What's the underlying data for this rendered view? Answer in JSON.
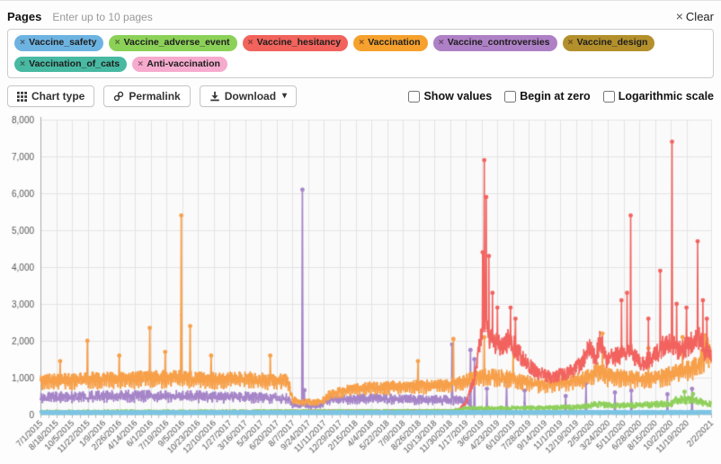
{
  "header": {
    "pages_label": "Pages",
    "pages_placeholder": "Enter up to 10 pages",
    "clear_icon": "×",
    "clear_label": "Clear",
    "tags": [
      {
        "label": "Vaccine_safety",
        "color": "#6db3e2",
        "remove_icon": "×"
      },
      {
        "label": "Vaccine_adverse_event",
        "color": "#8bd158",
        "remove_icon": "×"
      },
      {
        "label": "Vaccine_hesitancy",
        "color": "#f1635c",
        "remove_icon": "×"
      },
      {
        "label": "Vaccination",
        "color": "#f6a12d",
        "remove_icon": "×"
      },
      {
        "label": "Vaccine_controversies",
        "color": "#ae80c5",
        "remove_icon": "×"
      },
      {
        "label": "Vaccine_design",
        "color": "#b3902c",
        "remove_icon": "×"
      },
      {
        "label": "Vaccination_of_cats",
        "color": "#48b9a2",
        "remove_icon": "×"
      },
      {
        "label": "Anti-vaccination",
        "color": "#f6abce",
        "remove_icon": "×"
      }
    ]
  },
  "toolbar": {
    "buttons": [
      {
        "label": "Chart type"
      },
      {
        "label": "Permalink"
      },
      {
        "label": "Download"
      }
    ],
    "download_caret": "▾",
    "checkboxes": [
      {
        "label": "Show values",
        "checked": false
      },
      {
        "label": "Begin at zero",
        "checked": false
      },
      {
        "label": "Logarithmic scale",
        "checked": false
      }
    ]
  },
  "chart_data": {
    "type": "line",
    "title": "",
    "xlabel": "",
    "ylabel": "",
    "ylim": [
      0,
      8000
    ],
    "y_tick_step": 1000,
    "grid": true,
    "legend_position": "none",
    "x_start_date": "7/1/2015",
    "x_end_date": "2/2/2021",
    "x_total_days": 2043,
    "x_tick_interval_days": 48,
    "x_tick_labels": [
      "7/1/2015",
      "8/18/2015",
      "10/5/2015",
      "11/22/2015",
      "1/9/2016",
      "2/26/2016",
      "4/14/2016",
      "6/1/2016",
      "7/19/2016",
      "9/5/2016",
      "10/23/2016",
      "12/10/2016",
      "1/27/2017",
      "3/16/2017",
      "5/3/2017",
      "6/20/2017",
      "8/7/2017",
      "9/24/2017",
      "11/11/2017",
      "12/29/2017",
      "2/15/2018",
      "4/4/2018",
      "5/22/2018",
      "7/9/2018",
      "8/26/2018",
      "10/13/2018",
      "11/30/2018",
      "1/17/2019",
      "3/6/2019",
      "4/23/2019",
      "6/10/2019",
      "7/28/2019",
      "9/14/2019",
      "11/1/2019",
      "12/19/2019",
      "2/5/2020",
      "3/24/2020",
      "5/11/2020",
      "6/28/2020",
      "8/15/2020",
      "10/2/2020",
      "11/19/2020",
      "2/2/2021"
    ],
    "series": [
      {
        "name": "Vaccine_safety",
        "color": "#7cc4e4",
        "line_width": 4.5,
        "noise_rel": 0.22,
        "weekly_dip": false,
        "markers": false,
        "keyframes": [
          [
            0,
            55
          ],
          [
            2043,
            60
          ]
        ],
        "spikes": []
      },
      {
        "name": "Vaccine_adverse_event",
        "color": "#8fd05c",
        "line_width": 1.6,
        "noise_rel": 0.3,
        "weekly_dip": false,
        "markers": true,
        "keyframes": [
          [
            0,
            90
          ],
          [
            1250,
            105
          ],
          [
            1300,
            170
          ],
          [
            1500,
            180
          ],
          [
            1640,
            200
          ],
          [
            1700,
            280
          ],
          [
            1760,
            240
          ],
          [
            1850,
            260
          ],
          [
            1920,
            300
          ],
          [
            1945,
            420
          ],
          [
            1990,
            380
          ],
          [
            2020,
            320
          ],
          [
            2043,
            280
          ]
        ],
        "spikes": [
          [
            1962,
            620
          ],
          [
            1988,
            560
          ]
        ]
      },
      {
        "name": "Vaccine_hesitancy",
        "color": "#f2635f",
        "line_width": 1.6,
        "noise_rel": 0.16,
        "weekly_dip": false,
        "markers": true,
        "keyframes": [
          [
            0,
            80
          ],
          [
            1270,
            110
          ],
          [
            1295,
            300
          ],
          [
            1320,
            900
          ],
          [
            1340,
            2000
          ],
          [
            1352,
            2500
          ],
          [
            1365,
            2100
          ],
          [
            1395,
            1900
          ],
          [
            1430,
            2000
          ],
          [
            1470,
            1500
          ],
          [
            1510,
            1150
          ],
          [
            1560,
            1000
          ],
          [
            1610,
            1150
          ],
          [
            1645,
            1350
          ],
          [
            1672,
            1800
          ],
          [
            1690,
            1500
          ],
          [
            1705,
            2000
          ],
          [
            1725,
            1500
          ],
          [
            1765,
            1600
          ],
          [
            1800,
            1700
          ],
          [
            1830,
            1400
          ],
          [
            1860,
            1500
          ],
          [
            1890,
            1800
          ],
          [
            1920,
            2000
          ],
          [
            1945,
            1700
          ],
          [
            1975,
            1900
          ],
          [
            2005,
            2100
          ],
          [
            2025,
            1700
          ],
          [
            2043,
            1600
          ]
        ],
        "spikes": [
          [
            1347,
            4400
          ],
          [
            1352,
            6900
          ],
          [
            1358,
            5900
          ],
          [
            1366,
            4300
          ],
          [
            1377,
            3300
          ],
          [
            1392,
            2900
          ],
          [
            1432,
            2900
          ],
          [
            1447,
            2600
          ],
          [
            1770,
            3100
          ],
          [
            1787,
            3300
          ],
          [
            1798,
            5400
          ],
          [
            1852,
            2600
          ],
          [
            1888,
            3900
          ],
          [
            1924,
            7400
          ],
          [
            1938,
            3000
          ],
          [
            1968,
            2900
          ],
          [
            2002,
            4700
          ],
          [
            2018,
            3100
          ],
          [
            2030,
            2600
          ]
        ]
      },
      {
        "name": "Vaccination",
        "color": "#f7a04a",
        "line_width": 1.8,
        "noise_rel": 0.14,
        "weekly_dip": true,
        "markers": true,
        "keyframes": [
          [
            0,
            950
          ],
          [
            150,
            1000
          ],
          [
            300,
            1030
          ],
          [
            420,
            1050
          ],
          [
            520,
            1000
          ],
          [
            640,
            1020
          ],
          [
            755,
            950
          ],
          [
            768,
            420
          ],
          [
            800,
            360
          ],
          [
            855,
            360
          ],
          [
            875,
            560
          ],
          [
            930,
            700
          ],
          [
            1000,
            780
          ],
          [
            1100,
            800
          ],
          [
            1200,
            820
          ],
          [
            1270,
            880
          ],
          [
            1340,
            1100
          ],
          [
            1420,
            1050
          ],
          [
            1470,
            950
          ],
          [
            1530,
            850
          ],
          [
            1590,
            900
          ],
          [
            1650,
            1000
          ],
          [
            1700,
            1250
          ],
          [
            1730,
            1100
          ],
          [
            1790,
            1050
          ],
          [
            1850,
            1000
          ],
          [
            1900,
            1100
          ],
          [
            1950,
            1250
          ],
          [
            2000,
            1400
          ],
          [
            2030,
            1800
          ],
          [
            2043,
            1900
          ]
        ],
        "spikes": [
          [
            60,
            1450
          ],
          [
            143,
            2000
          ],
          [
            240,
            1600
          ],
          [
            333,
            2350
          ],
          [
            380,
            1700
          ],
          [
            429,
            5400
          ],
          [
            456,
            2400
          ],
          [
            520,
            1600
          ],
          [
            700,
            1600
          ],
          [
            1150,
            1450
          ],
          [
            1258,
            2050
          ],
          [
            1352,
            2100
          ],
          [
            1440,
            1800
          ],
          [
            1712,
            2200
          ],
          [
            1852,
            1800
          ],
          [
            1956,
            2100
          ],
          [
            2024,
            2150
          ]
        ]
      },
      {
        "name": "Vaccine_controversies",
        "color": "#a685c8",
        "line_width": 1.7,
        "noise_rel": 0.22,
        "weekly_dip": true,
        "markers": true,
        "keyframes": [
          [
            0,
            500
          ],
          [
            200,
            530
          ],
          [
            400,
            540
          ],
          [
            600,
            500
          ],
          [
            755,
            470
          ],
          [
            770,
            260
          ],
          [
            855,
            250
          ],
          [
            880,
            420
          ],
          [
            1000,
            460
          ],
          [
            1150,
            430
          ],
          [
            1270,
            420
          ],
          [
            1300,
            380
          ],
          [
            1314,
            200
          ],
          [
            1318,
            40
          ],
          [
            1400,
            35
          ],
          [
            1600,
            30
          ],
          [
            1800,
            35
          ],
          [
            2043,
            30
          ]
        ],
        "spikes": [
          [
            798,
            6100
          ],
          [
            804,
            660
          ],
          [
            1254,
            1900
          ],
          [
            1310,
            1750
          ],
          [
            1322,
            1500
          ],
          [
            1360,
            700
          ],
          [
            1420,
            900
          ],
          [
            1475,
            650
          ],
          [
            1600,
            500
          ],
          [
            1662,
            850
          ],
          [
            1750,
            600
          ],
          [
            1800,
            650
          ],
          [
            1910,
            550
          ],
          [
            1985,
            700
          ]
        ]
      },
      {
        "name": "Vaccine_design",
        "color": "#b3902c",
        "line_width": 1.3,
        "noise_rel": 0.35,
        "weekly_dip": false,
        "markers": false,
        "keyframes": [
          [
            0,
            28
          ],
          [
            2043,
            35
          ]
        ],
        "spikes": []
      },
      {
        "name": "Vaccination_of_cats",
        "color": "#48b9a2",
        "line_width": 1.3,
        "noise_rel": 0.4,
        "weekly_dip": false,
        "markers": false,
        "keyframes": [
          [
            0,
            10
          ],
          [
            2043,
            14
          ]
        ],
        "spikes": []
      },
      {
        "name": "Anti-vaccination",
        "color": "#f6abce",
        "line_width": 1.3,
        "noise_rel": 0.4,
        "weekly_dip": false,
        "markers": false,
        "keyframes": [
          [
            0,
            20
          ],
          [
            1300,
            25
          ],
          [
            1320,
            60
          ],
          [
            2043,
            55
          ]
        ],
        "spikes": []
      }
    ]
  }
}
